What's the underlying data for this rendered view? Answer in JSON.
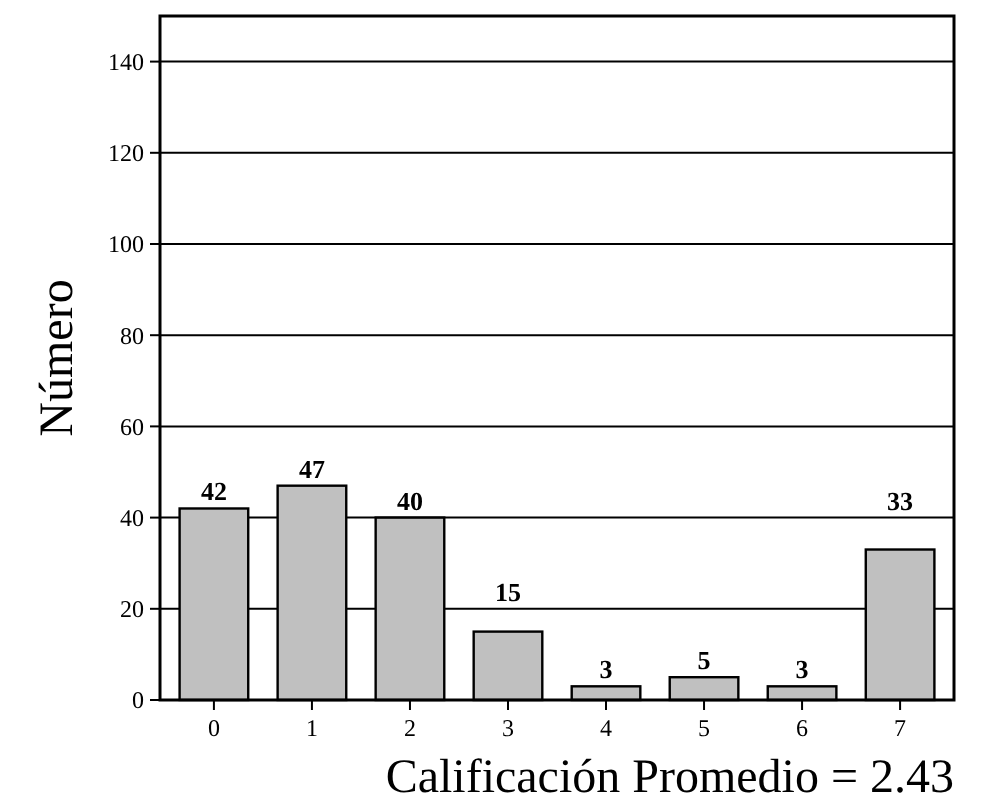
{
  "chart_data": {
    "type": "bar",
    "xlabel": "Calificación Promedio = 2.43",
    "ylabel": "Número",
    "categories": [
      "0",
      "1",
      "2",
      "3",
      "4",
      "5",
      "6",
      "7"
    ],
    "values": [
      42,
      47,
      40,
      15,
      3,
      5,
      3,
      33
    ],
    "color": "#c0c0c0",
    "ylim": [
      0,
      150
    ],
    "yticks": [
      0,
      20,
      40,
      60,
      80,
      100,
      120,
      140
    ],
    "grid": "y",
    "data_labels": true
  }
}
